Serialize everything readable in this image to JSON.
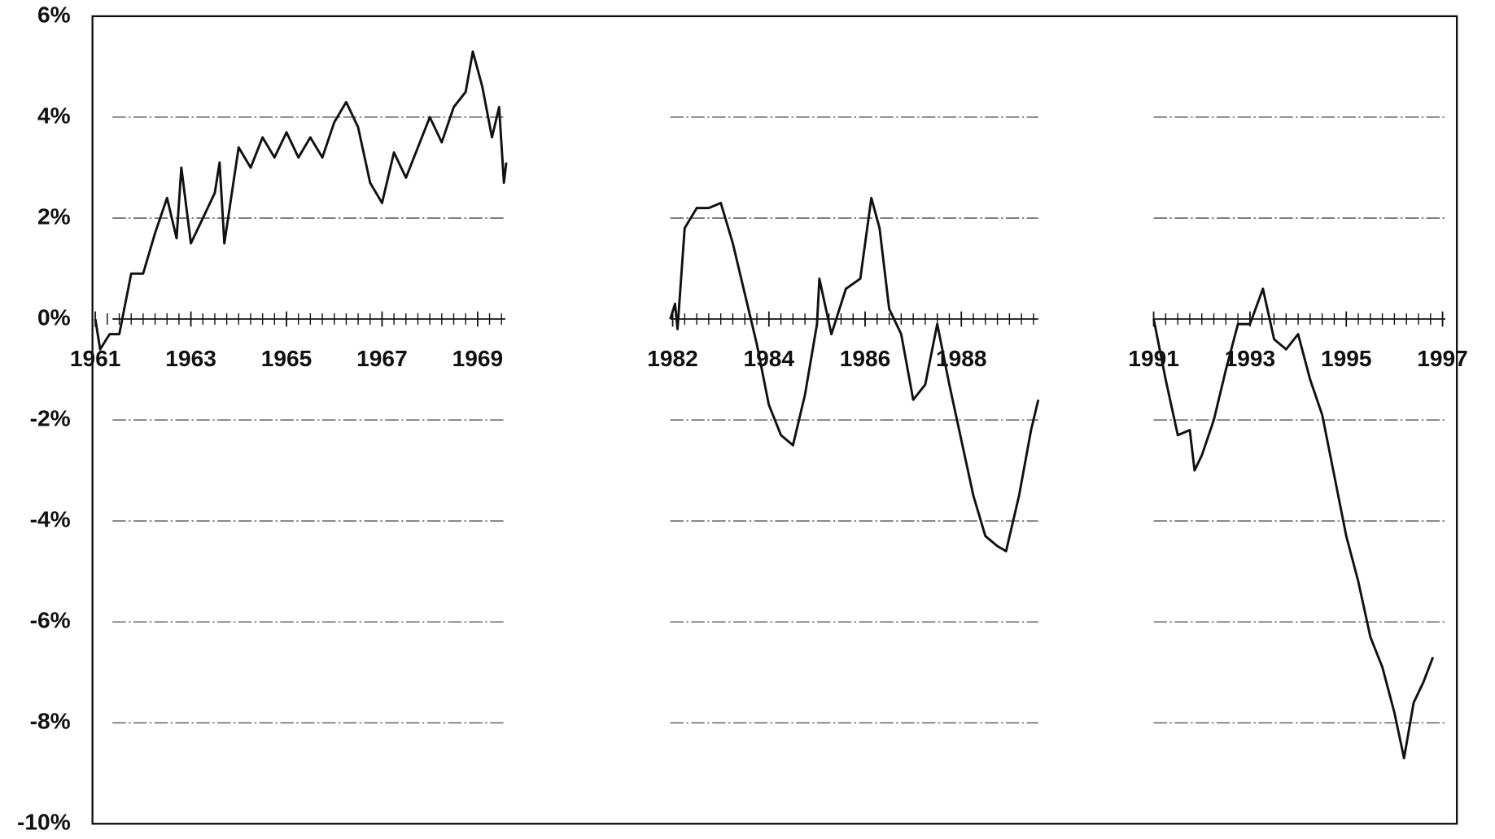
{
  "chart_data": [
    {
      "type": "line",
      "color": "#111111",
      "ylim": [
        -10,
        6
      ],
      "yticks": [
        {
          "value": 6,
          "label": "6%"
        },
        {
          "value": 4,
          "label": "4%"
        },
        {
          "value": 2,
          "label": "2%"
        },
        {
          "value": 0,
          "label": "0%"
        },
        {
          "value": -2,
          "label": "-2%"
        },
        {
          "value": -4,
          "label": "-4%"
        },
        {
          "value": -6,
          "label": "-6%"
        },
        {
          "value": -8,
          "label": "-8%"
        },
        {
          "value": -10,
          "label": "-10%"
        }
      ],
      "xlim": [
        1961,
        1969.6
      ],
      "xticks": [
        1961,
        1963,
        1965,
        1967,
        1969
      ],
      "x": [
        1961.0,
        1961.1,
        1961.3,
        1961.5,
        1961.75,
        1962.0,
        1962.25,
        1962.5,
        1962.7,
        1962.8,
        1963.0,
        1963.25,
        1963.5,
        1963.6,
        1963.7,
        1964.0,
        1964.25,
        1964.5,
        1964.75,
        1965.0,
        1965.25,
        1965.5,
        1965.75,
        1966.0,
        1966.25,
        1966.5,
        1966.75,
        1967.0,
        1967.25,
        1967.5,
        1967.75,
        1968.0,
        1968.25,
        1968.5,
        1968.75,
        1968.9,
        1969.1,
        1969.3,
        1969.45,
        1969.55,
        1969.6
      ],
      "values": [
        0.0,
        -0.6,
        -0.3,
        -0.3,
        0.9,
        0.9,
        1.7,
        2.4,
        1.6,
        3.0,
        1.5,
        2.0,
        2.5,
        3.1,
        1.5,
        3.4,
        3.0,
        3.6,
        3.2,
        3.7,
        3.2,
        3.6,
        3.2,
        3.9,
        4.3,
        3.8,
        2.7,
        2.3,
        3.3,
        2.8,
        3.4,
        4.0,
        3.5,
        4.2,
        4.5,
        5.3,
        4.6,
        3.6,
        4.2,
        2.7,
        3.1
      ]
    },
    {
      "type": "line",
      "color": "#111111",
      "ylim": [
        -10,
        6
      ],
      "xlim": [
        1981.95,
        1989.6
      ],
      "xticks": [
        1982,
        1984,
        1986,
        1988
      ],
      "x": [
        1981.95,
        1982.05,
        1982.1,
        1982.25,
        1982.5,
        1982.75,
        1983.0,
        1983.25,
        1983.5,
        1983.75,
        1984.0,
        1984.25,
        1984.5,
        1984.75,
        1985.0,
        1985.05,
        1985.3,
        1985.6,
        1985.9,
        1986.13,
        1986.3,
        1986.5,
        1986.75,
        1987.0,
        1987.25,
        1987.5,
        1987.75,
        1988.0,
        1988.25,
        1988.5,
        1988.75,
        1988.93,
        1989.2,
        1989.45,
        1989.6
      ],
      "values": [
        0.0,
        0.3,
        -0.2,
        1.8,
        2.2,
        2.2,
        2.3,
        1.5,
        0.5,
        -0.5,
        -1.7,
        -2.3,
        -2.5,
        -1.5,
        -0.1,
        0.8,
        -0.3,
        0.6,
        0.8,
        2.4,
        1.8,
        0.2,
        -0.3,
        -1.6,
        -1.3,
        -0.1,
        -1.3,
        -2.4,
        -3.5,
        -4.3,
        -4.5,
        -4.6,
        -3.5,
        -2.2,
        -1.6
      ]
    },
    {
      "type": "line",
      "color": "#111111",
      "ylim": [
        -10,
        6
      ],
      "xlim": [
        1991,
        1997
      ],
      "xticks": [
        1991,
        1993,
        1995,
        1997
      ],
      "x": [
        1991.0,
        1991.25,
        1991.5,
        1991.75,
        1991.85,
        1992.0,
        1992.25,
        1992.5,
        1992.75,
        1993.0,
        1993.27,
        1993.5,
        1993.75,
        1994.0,
        1994.25,
        1994.5,
        1994.75,
        1995.0,
        1995.25,
        1995.5,
        1995.75,
        1996.0,
        1996.2,
        1996.4,
        1996.6,
        1996.8
      ],
      "values": [
        0.0,
        -1.2,
        -2.3,
        -2.2,
        -3.0,
        -2.7,
        -2.0,
        -1.0,
        -0.1,
        -0.1,
        0.6,
        -0.4,
        -0.6,
        -0.3,
        -1.2,
        -1.9,
        -3.1,
        -4.3,
        -5.2,
        -6.3,
        -6.9,
        -7.8,
        -8.7,
        -7.6,
        -7.2,
        -6.7
      ]
    }
  ]
}
